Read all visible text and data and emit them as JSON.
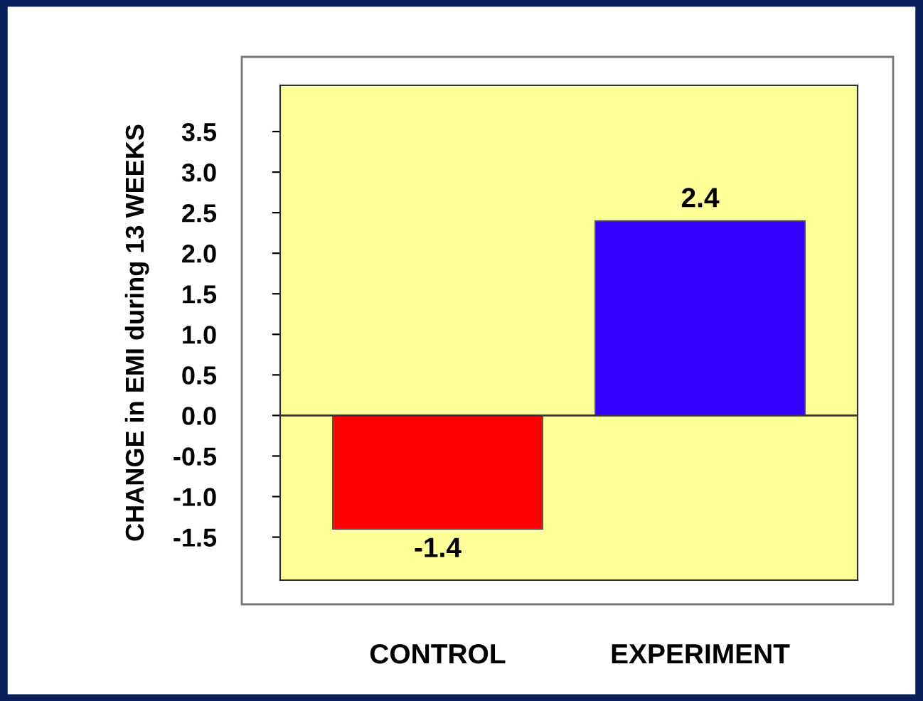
{
  "chart_data": {
    "type": "bar",
    "ylabel": "CHANGE in EMI during 13 WEEKS",
    "categories": [
      "CONTROL",
      "EXPERIMENT"
    ],
    "values": [
      -1.4,
      2.4
    ],
    "colors": [
      "#ff0000",
      "#3300ff"
    ],
    "ylim": [
      -2.03,
      4.07
    ],
    "yticks": [
      {
        "value": -1.5,
        "label": "-1.5"
      },
      {
        "value": -1.0,
        "label": "-1.0"
      },
      {
        "value": -0.5,
        "label": "-0.5"
      },
      {
        "value": 0,
        "label": "0.0"
      },
      {
        "value": 0.5,
        "label": "0.5"
      },
      {
        "value": 1.0,
        "label": "1.0"
      },
      {
        "value": 1.5,
        "label": "1.5"
      },
      {
        "value": 2.0,
        "label": "2.0"
      },
      {
        "value": 2.5,
        "label": "2.5"
      },
      {
        "value": 3.0,
        "label": "3.0"
      },
      {
        "value": 3.5,
        "label": "3.5"
      }
    ],
    "data_labels": true,
    "legend": false
  }
}
